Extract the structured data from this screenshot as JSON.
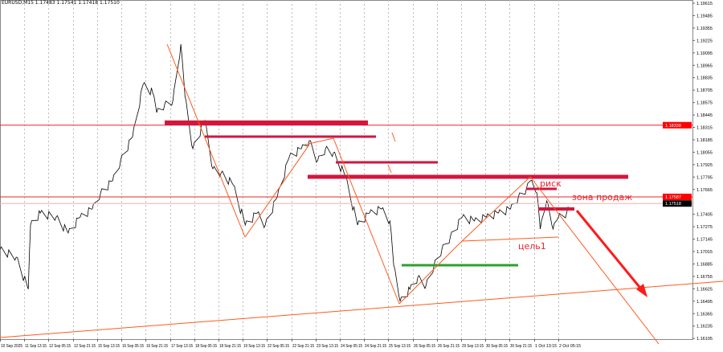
{
  "header": {
    "symbol_line": "EURUSD,M15  1.17483 1.17541 1.17418 1.17510"
  },
  "annotations": {
    "risk": "риск",
    "sell_zone": "зона продаж",
    "target1": "цель1"
  },
  "colors": {
    "price_line": "#000000",
    "level_red": "#e8242c",
    "zone_crimson": "#d3163e",
    "trend_orange": "#ff5a1f",
    "target_green": "#2ca02c",
    "bid_label": "#ff0000",
    "ask_label": "#000000"
  },
  "chart_data": {
    "type": "line",
    "title": "",
    "xlabel": "",
    "ylabel": "",
    "ylim": [
      1.16105,
      1.19615
    ],
    "grid": true,
    "x_tick_labels": [
      "10 Sep 2025",
      "11 Sep 13:15",
      "12 Sep 05:15",
      "12 Sep 21:15",
      "15 Sep 13:15",
      "16 Sep 05:15",
      "16 Sep 21:15",
      "17 Sep 13:15",
      "18 Sep 05:15",
      "18 Sep 21:15",
      "19 Sep 13:15",
      "22 Sep 05:15",
      "22 Sep 21:15",
      "23 Sep 13:15",
      "24 Sep 05:15",
      "24 Sep 21:15",
      "25 Sep 13:15",
      "26 Sep 05:15",
      "26 Sep 21:15",
      "29 Sep 13:15",
      "30 Sep 05:15",
      "30 Sep 21:15",
      "1 Oct 13:15",
      "2 Oct 05:15"
    ],
    "y_tick_labels": [
      "1.19615",
      "1.19485",
      "1.19355",
      "1.19225",
      "1.19095",
      "1.18965",
      "1.18835",
      "1.18705",
      "1.18575",
      "1.18445",
      "1.18315",
      "1.18185",
      "1.18055",
      "1.17925",
      "1.17795",
      "1.17665",
      "1.17405",
      "1.17275",
      "1.17145",
      "1.17015",
      "1.16885",
      "1.16755",
      "1.16625",
      "1.16495",
      "1.16365",
      "1.16235",
      "1.16105"
    ],
    "price_labels": [
      {
        "text": "1.18338",
        "kind": "level"
      },
      {
        "text": "1.17587",
        "kind": "level"
      },
      {
        "text": "1.17518",
        "kind": "bid"
      }
    ],
    "series": [
      {
        "bar": [
          0,
          43,
          75,
          81,
          107,
          149,
          181,
          213,
          245,
          267,
          299,
          320,
          352,
          380,
          405,
          416,
          437,
          459,
          480,
          491,
          512,
          544,
          565,
          587,
          619,
          651,
          683,
          704,
          736,
          768,
          800,
          821,
          843,
          864,
          885,
          917,
          949,
          981,
          1013,
          1035,
          1045,
          1062,
          1088,
          1109,
          1131,
          1152,
          1173,
          1195,
          1227,
          1259,
          1291,
          1323,
          1355,
          1376,
          1397,
          1408,
          1425,
          1434,
          1451,
          1468,
          1482,
          1504,
          1510
        ],
        "price": [
          1.1704,
          1.16956,
          1.1662,
          1.17293,
          1.17419,
          1.17377,
          1.17209,
          1.17377,
          1.17461,
          1.17629,
          1.17756,
          1.17966,
          1.18218,
          1.18765,
          1.18681,
          1.18471,
          1.18555,
          1.18597,
          1.19186,
          1.18639,
          1.18092,
          1.18387,
          1.17882,
          1.1784,
          1.17713,
          1.17293,
          1.17419,
          1.17293,
          1.17587,
          1.18008,
          1.18092,
          1.18176,
          1.17966,
          1.18092,
          1.1805,
          1.17798,
          1.17293,
          1.17419,
          1.17461,
          1.17335,
          1.16872,
          1.16493,
          1.1662,
          1.16746,
          1.16662,
          1.16872,
          1.1704,
          1.17166,
          1.17377,
          1.17335,
          1.17377,
          1.17419,
          1.17461,
          1.17587,
          1.17671,
          1.17756,
          1.17629,
          1.17251,
          1.17545,
          1.17251,
          1.17377,
          1.17419,
          1.17478
        ]
      }
    ]
  }
}
